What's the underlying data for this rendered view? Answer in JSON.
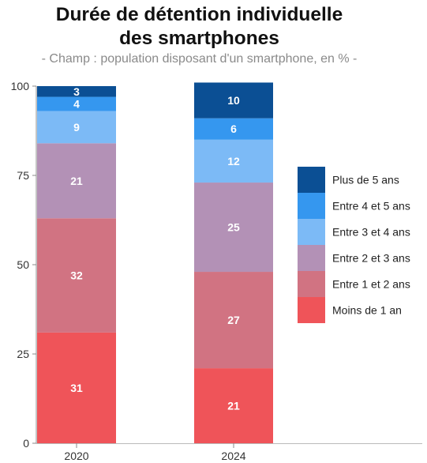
{
  "title_line1": "Durée de détention individuelle",
  "title_line2": "des smartphones",
  "subtitle": "- Champ : population disposant d'un smartphone, en % -",
  "chart_data": {
    "type": "bar",
    "stacked": true,
    "title": "Durée de détention individuelle des smartphones",
    "subtitle": "- Champ : population disposant d'un smartphone, en % -",
    "categories": [
      "2020",
      "2024"
    ],
    "ylim": [
      0,
      100
    ],
    "yticks": [
      0,
      25,
      50,
      75,
      100
    ],
    "grid": false,
    "legend_position": "right",
    "series": [
      {
        "name": "Moins de 1 an",
        "color": "#ef5459",
        "values": [
          31,
          21
        ]
      },
      {
        "name": "Entre 1 et 2 ans",
        "color": "#d17382",
        "values": [
          32,
          27
        ]
      },
      {
        "name": "Entre 2 et 3 ans",
        "color": "#b391b6",
        "values": [
          21,
          25
        ]
      },
      {
        "name": "Entre 3 et 4 ans",
        "color": "#7cbaf6",
        "values": [
          9,
          12
        ]
      },
      {
        "name": "Entre 4 et 5 ans",
        "color": "#3597ef",
        "values": [
          4,
          6
        ]
      },
      {
        "name": "Plus de 5 ans",
        "color": "#0b4f94",
        "values": [
          3,
          10
        ]
      }
    ]
  }
}
